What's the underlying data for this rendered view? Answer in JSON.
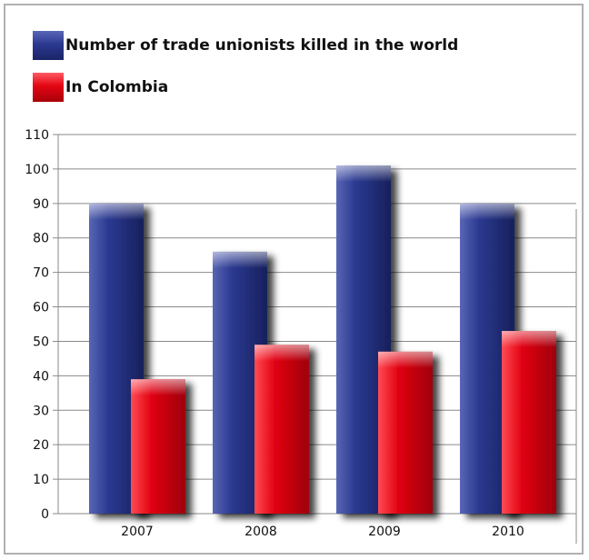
{
  "chart_data": {
    "type": "bar",
    "categories": [
      "2007",
      "2008",
      "2009",
      "2010"
    ],
    "series": [
      {
        "name": "Number of trade unionists killed in the world",
        "values": [
          90,
          76,
          101,
          90
        ],
        "color": "#2b3990"
      },
      {
        "name": "In Colombia",
        "values": [
          39,
          49,
          47,
          53
        ],
        "color": "#e30613"
      }
    ],
    "ylim": [
      0,
      110
    ],
    "yticks": [
      0,
      10,
      20,
      30,
      40,
      50,
      60,
      70,
      80,
      90,
      100,
      110
    ],
    "grid": true,
    "legend_position": "top-left",
    "title": "",
    "xlabel": "",
    "ylabel": ""
  }
}
